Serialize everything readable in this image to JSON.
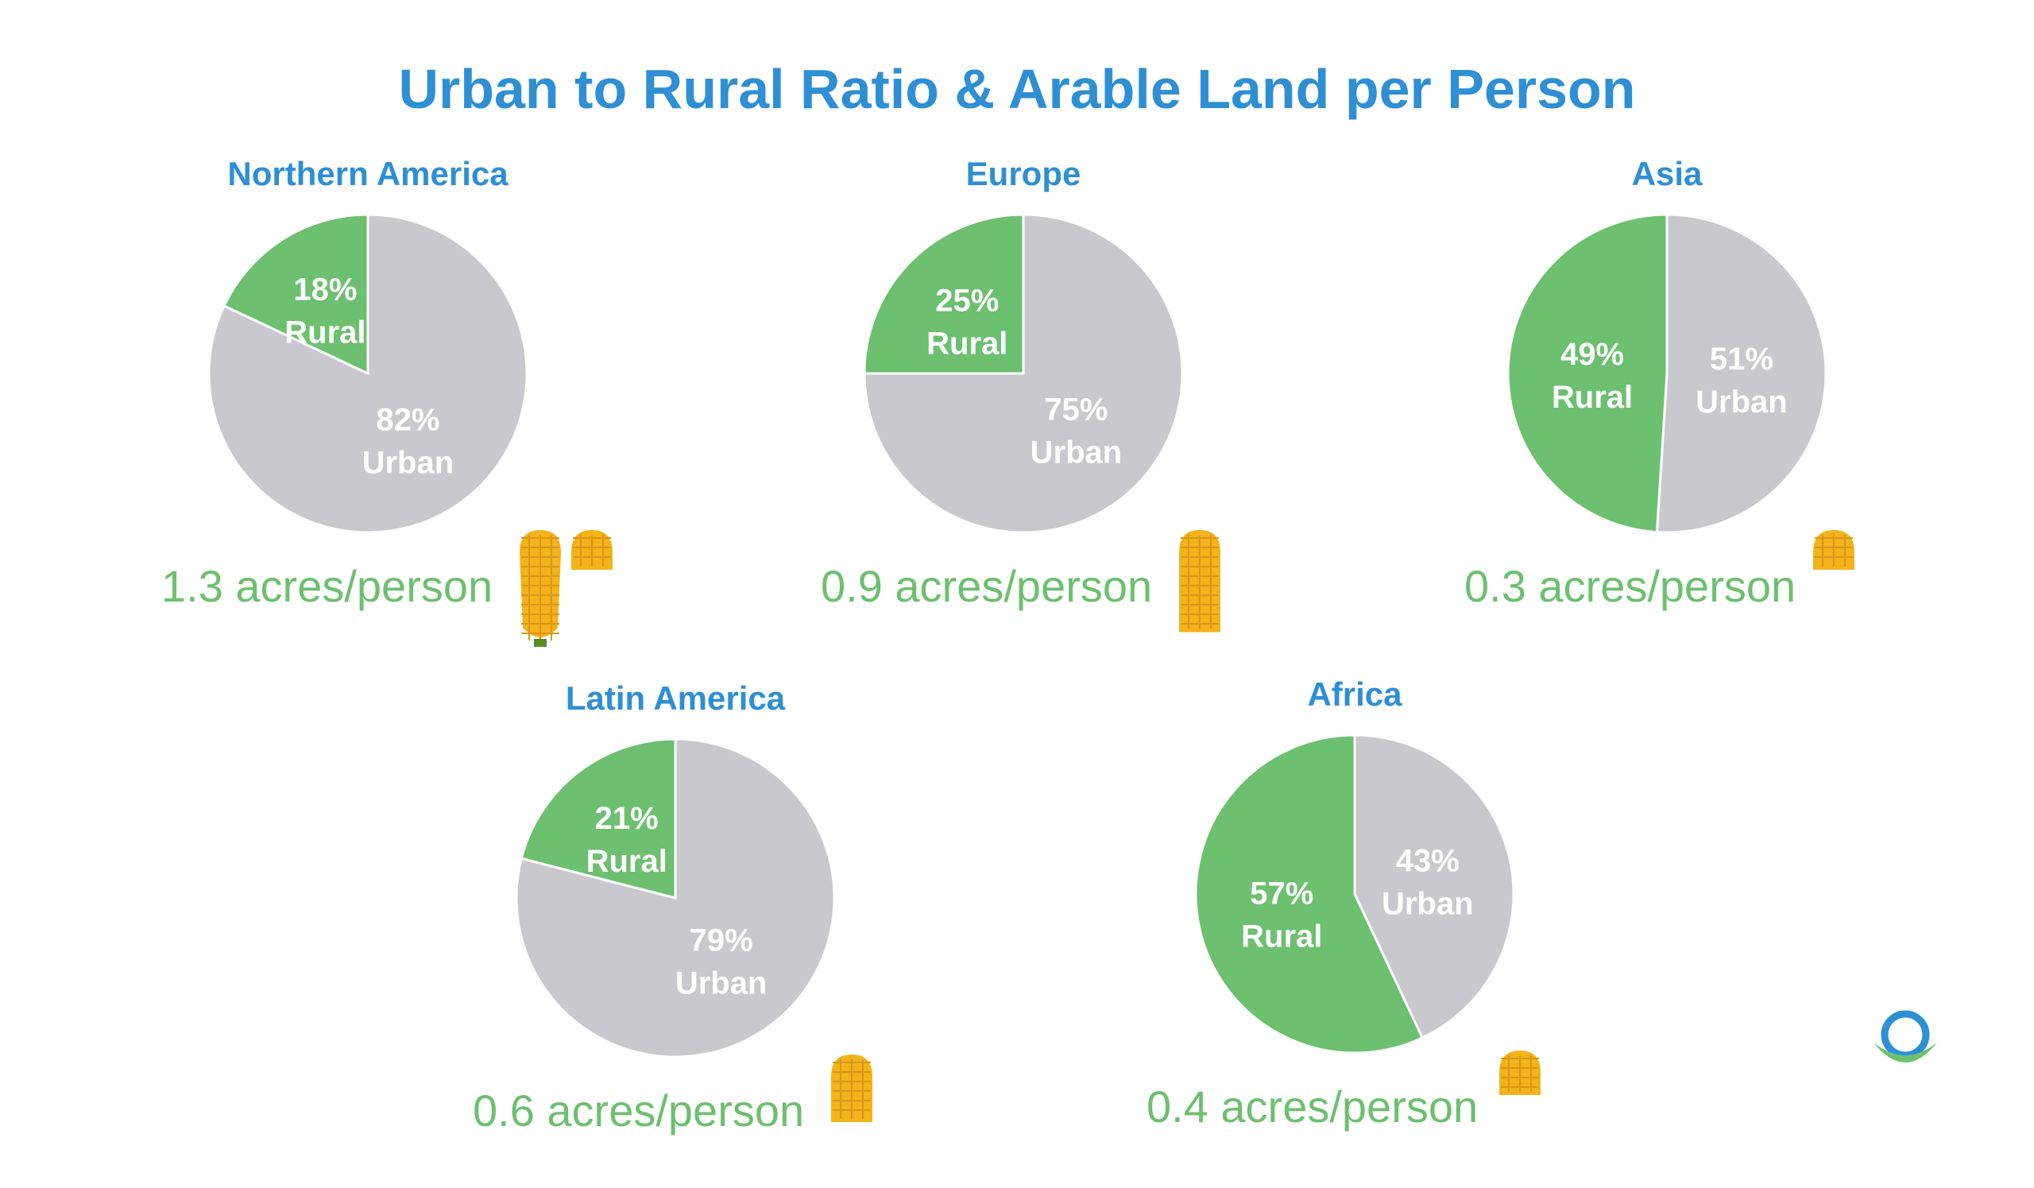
{
  "chart_data": {
    "type": "pie",
    "title": "Urban to Rural Ratio & Arable Land per Person",
    "colors": {
      "rural": "#6cc06f",
      "urban": "#c8c8ce",
      "title": "#2e8fd4",
      "corn": "#f3b31a"
    },
    "charts": [
      {
        "region": "Northern America",
        "slices": [
          {
            "name": "Rural",
            "value": 18,
            "label": "18%"
          },
          {
            "name": "Urban",
            "value": 82,
            "label": "82%"
          }
        ],
        "arable_land": "1.3 acres/person",
        "acres_per_person": 1.3
      },
      {
        "region": "Europe",
        "slices": [
          {
            "name": "Rural",
            "value": 25,
            "label": "25%"
          },
          {
            "name": "Urban",
            "value": 75,
            "label": "75%"
          }
        ],
        "arable_land": "0.9 acres/person",
        "acres_per_person": 0.9
      },
      {
        "region": "Asia",
        "slices": [
          {
            "name": "Rural",
            "value": 49,
            "label": "49%"
          },
          {
            "name": "Urban",
            "value": 51,
            "label": "51%"
          }
        ],
        "arable_land": "0.3 acres/person",
        "acres_per_person": 0.3
      },
      {
        "region": "Latin America",
        "slices": [
          {
            "name": "Rural",
            "value": 21,
            "label": "21%"
          },
          {
            "name": "Urban",
            "value": 79,
            "label": "79%"
          }
        ],
        "arable_land": "0.6 acres/person",
        "acres_per_person": 0.6
      },
      {
        "region": "Africa",
        "slices": [
          {
            "name": "Rural",
            "value": 57,
            "label": "57%"
          },
          {
            "name": "Urban",
            "value": 43,
            "label": "43%"
          }
        ],
        "arable_land": "0.4 acres/person",
        "acres_per_person": 0.4
      }
    ]
  },
  "icons": {
    "corn": "corn-icon",
    "logo": "organization-logo-icon"
  }
}
